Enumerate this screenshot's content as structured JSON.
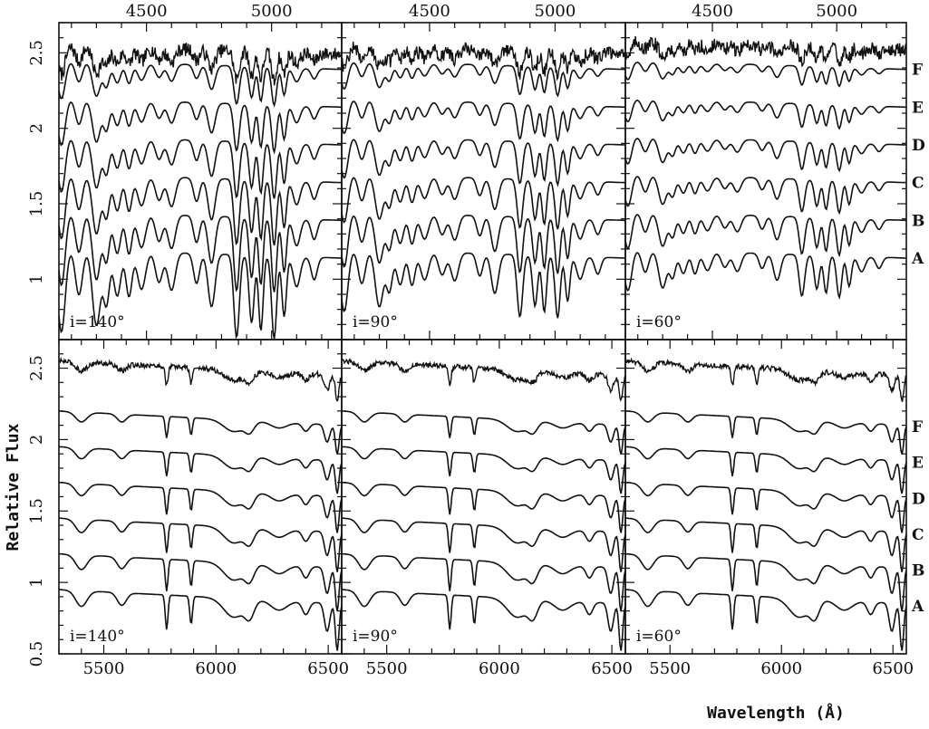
{
  "chart_data": {
    "type": "line",
    "ylabel": "Relative Flux",
    "xlabel": "Wavelength (Å)",
    "model_labels": [
      "F",
      "E",
      "D",
      "C",
      "B",
      "A"
    ],
    "top_row": {
      "xlim": [
        4150,
        5280
      ],
      "x_ticks": [
        "4500",
        "5000"
      ],
      "ylim": [
        0.6,
        2.7
      ],
      "y_ticks": [
        "1",
        "1.5",
        "2",
        "2.5"
      ],
      "panels": [
        {
          "annotation": "i=140°",
          "spectrum_offsets": [
            2.55,
            2.45,
            2.2,
            1.95,
            1.7,
            1.45,
            1.2
          ]
        },
        {
          "annotation": "i=90°",
          "spectrum_offsets": [
            2.55,
            2.45,
            2.2,
            1.95,
            1.7,
            1.45,
            1.2
          ]
        },
        {
          "annotation": "i=60°",
          "spectrum_offsets": [
            2.58,
            2.45,
            2.2,
            1.95,
            1.7,
            1.45,
            1.2
          ]
        }
      ]
    },
    "bottom_row": {
      "xlim": [
        5300,
        6560
      ],
      "x_ticks": [
        "5500",
        "6000",
        "6500"
      ],
      "ylim": [
        0.5,
        2.7
      ],
      "y_ticks": [
        "0.5",
        "1",
        "1.5",
        "2",
        "2.5"
      ],
      "panels": [
        {
          "annotation": "i=140°",
          "spectrum_offsets": [
            2.55,
            2.2,
            1.95,
            1.7,
            1.45,
            1.2,
            0.95
          ]
        },
        {
          "annotation": "i=90°",
          "spectrum_offsets": [
            2.55,
            2.2,
            1.95,
            1.7,
            1.45,
            1.2,
            0.95
          ]
        },
        {
          "annotation": "i=60°",
          "spectrum_offsets": [
            2.55,
            2.2,
            1.95,
            1.7,
            1.45,
            1.2,
            0.95
          ]
        }
      ]
    }
  }
}
